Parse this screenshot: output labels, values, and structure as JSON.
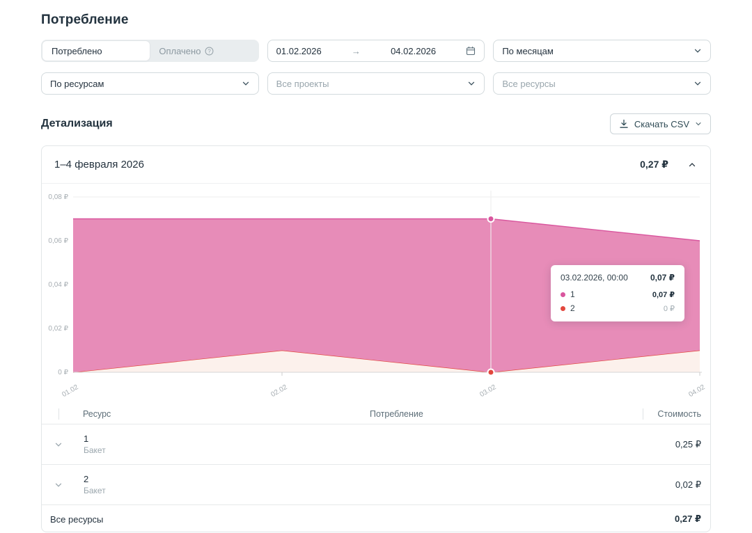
{
  "page": {
    "title": "Потребление"
  },
  "filters": {
    "toggle": {
      "consumed_label": "Потреблено",
      "paid_label": "Оплачено"
    },
    "date_range": {
      "start": "01.02.2026",
      "separator": "→",
      "end": "04.02.2026"
    },
    "granularity": {
      "value": "По месяцам"
    },
    "group_by": {
      "value": "По ресурсам"
    },
    "projects": {
      "placeholder": "Все проекты"
    },
    "resources": {
      "placeholder": "Все ресурсы"
    }
  },
  "details": {
    "title": "Детализация",
    "download_label": "Скачать CSV"
  },
  "card": {
    "period_title": "1–4 февраля 2026",
    "total": "0,27 ₽"
  },
  "chart_data": {
    "type": "area",
    "stacked": true,
    "x": [
      "01.02",
      "02.02",
      "03.02",
      "04.02"
    ],
    "series": [
      {
        "name": "1",
        "values": [
          0.07,
          0.06,
          0.07,
          0.05
        ],
        "color": "#d9569e",
        "fill": "#e78cb8"
      },
      {
        "name": "2",
        "values": [
          0,
          0.01,
          0,
          0.01
        ],
        "color": "#e2473d",
        "fill": "#fcf1ec"
      }
    ],
    "ylim": [
      0,
      0.08
    ],
    "ytick_labels": [
      "0,08 ₽",
      "0,06 ₽",
      "0,04 ₽",
      "0,02 ₽",
      "0 ₽"
    ],
    "grid": true,
    "hover_x": "03.02"
  },
  "tooltip": {
    "date": "03.02.2026, 00:00",
    "total": "0,07 ₽",
    "rows": [
      {
        "label": "1",
        "value": "0,07 ₽",
        "color": "#d9569e"
      },
      {
        "label": "2",
        "value": "0 ₽",
        "color": "#e2473d"
      }
    ]
  },
  "table": {
    "columns": {
      "resource": "Ресурс",
      "consumption": "Потребление",
      "cost": "Стоимость"
    },
    "rows": [
      {
        "name": "1",
        "type": "Бакет",
        "cost": "0,25 ₽"
      },
      {
        "name": "2",
        "type": "Бакет",
        "cost": "0,02 ₽"
      }
    ],
    "footer": {
      "label": "Все ресурсы",
      "cost": "0,27 ₽"
    }
  }
}
